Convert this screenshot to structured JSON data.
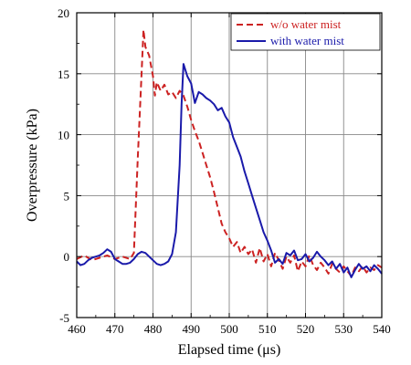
{
  "chart_data": {
    "type": "line",
    "title": "",
    "xlabel": "Elapsed time (μs)",
    "ylabel": "Overpressure (kPa)",
    "xlim": [
      460,
      540
    ],
    "ylim": [
      -5,
      20
    ],
    "xticks": [
      460,
      470,
      480,
      490,
      500,
      510,
      520,
      530,
      540
    ],
    "yticks": [
      -5,
      0,
      5,
      10,
      15,
      20
    ],
    "grid": true,
    "legend_position": "top-right",
    "series": [
      {
        "name": "w/o water mist",
        "color": "#cc2222",
        "style": "dashed",
        "points": [
          [
            460,
            -0.2
          ],
          [
            462,
            0.1
          ],
          [
            464,
            -0.3
          ],
          [
            466,
            -0.1
          ],
          [
            468,
            0.1
          ],
          [
            470,
            -0.2
          ],
          [
            472,
            0.0
          ],
          [
            474,
            -0.2
          ],
          [
            475,
            0.3
          ],
          [
            476,
            8.0
          ],
          [
            477,
            15.0
          ],
          [
            477.5,
            18.6
          ],
          [
            478,
            17.2
          ],
          [
            479,
            16.5
          ],
          [
            480,
            14.8
          ],
          [
            480.5,
            13.2
          ],
          [
            481,
            14.3
          ],
          [
            482,
            13.6
          ],
          [
            483,
            14.1
          ],
          [
            484,
            13.3
          ],
          [
            485,
            13.5
          ],
          [
            486,
            13.0
          ],
          [
            487,
            13.6
          ],
          [
            488,
            13.2
          ],
          [
            489,
            12.3
          ],
          [
            490,
            11.2
          ],
          [
            491,
            10.3
          ],
          [
            492,
            9.5
          ],
          [
            493,
            8.5
          ],
          [
            494,
            7.5
          ],
          [
            495,
            6.5
          ],
          [
            496,
            5.3
          ],
          [
            497,
            4.0
          ],
          [
            498,
            2.7
          ],
          [
            499,
            2.0
          ],
          [
            500,
            1.5
          ],
          [
            501,
            0.8
          ],
          [
            502,
            1.2
          ],
          [
            503,
            0.3
          ],
          [
            504,
            0.8
          ],
          [
            505,
            0.2
          ],
          [
            506,
            0.6
          ],
          [
            507,
            -0.5
          ],
          [
            508,
            0.7
          ],
          [
            509,
            -0.4
          ],
          [
            510,
            0.2
          ],
          [
            511,
            -0.8
          ],
          [
            512,
            0.3
          ],
          [
            513,
            -0.3
          ],
          [
            514,
            -1.0
          ],
          [
            515,
            0.0
          ],
          [
            516,
            -0.5
          ],
          [
            517,
            0.1
          ],
          [
            518,
            -1.2
          ],
          [
            519,
            -0.4
          ],
          [
            520,
            -0.8
          ],
          [
            521,
            0.1
          ],
          [
            522,
            -0.7
          ],
          [
            523,
            -1.1
          ],
          [
            524,
            -0.5
          ],
          [
            525,
            -0.9
          ],
          [
            526,
            -1.4
          ],
          [
            527,
            -0.6
          ],
          [
            528,
            -1.0
          ],
          [
            529,
            -1.3
          ],
          [
            530,
            -0.8
          ],
          [
            531,
            -1.2
          ],
          [
            532,
            -1.6
          ],
          [
            533,
            -0.9
          ],
          [
            534,
            -1.2
          ],
          [
            535,
            -0.8
          ],
          [
            536,
            -1.3
          ],
          [
            537,
            -0.9
          ],
          [
            538,
            -1.1
          ],
          [
            539,
            -0.7
          ],
          [
            540,
            -0.9
          ]
        ]
      },
      {
        "name": "with water mist",
        "color": "#1a1aaa",
        "style": "solid",
        "points": [
          [
            460,
            -0.4
          ],
          [
            461,
            -0.7
          ],
          [
            462,
            -0.6
          ],
          [
            463,
            -0.3
          ],
          [
            464,
            -0.1
          ],
          [
            465,
            0.0
          ],
          [
            466,
            0.1
          ],
          [
            467,
            0.3
          ],
          [
            468,
            0.6
          ],
          [
            469,
            0.4
          ],
          [
            470,
            -0.2
          ],
          [
            471,
            -0.4
          ],
          [
            472,
            -0.6
          ],
          [
            473,
            -0.6
          ],
          [
            474,
            -0.5
          ],
          [
            475,
            -0.2
          ],
          [
            476,
            0.2
          ],
          [
            477,
            0.4
          ],
          [
            478,
            0.3
          ],
          [
            479,
            0.0
          ],
          [
            480,
            -0.3
          ],
          [
            481,
            -0.6
          ],
          [
            482,
            -0.7
          ],
          [
            483,
            -0.6
          ],
          [
            484,
            -0.4
          ],
          [
            485,
            0.2
          ],
          [
            486,
            2.0
          ],
          [
            487,
            7.5
          ],
          [
            487.5,
            12.5
          ],
          [
            488,
            15.8
          ],
          [
            489,
            14.8
          ],
          [
            490,
            14.2
          ],
          [
            491,
            12.6
          ],
          [
            492,
            13.5
          ],
          [
            493,
            13.3
          ],
          [
            494,
            13.0
          ],
          [
            495,
            12.8
          ],
          [
            496,
            12.5
          ],
          [
            497,
            12.0
          ],
          [
            498,
            12.2
          ],
          [
            499,
            11.5
          ],
          [
            500,
            11.0
          ],
          [
            501,
            9.8
          ],
          [
            502,
            9.0
          ],
          [
            503,
            8.2
          ],
          [
            504,
            7.0
          ],
          [
            505,
            6.0
          ],
          [
            506,
            5.0
          ],
          [
            507,
            4.0
          ],
          [
            508,
            3.0
          ],
          [
            509,
            2.0
          ],
          [
            510,
            1.3
          ],
          [
            511,
            0.5
          ],
          [
            512,
            -0.5
          ],
          [
            513,
            -0.2
          ],
          [
            514,
            -0.6
          ],
          [
            515,
            0.3
          ],
          [
            516,
            0.1
          ],
          [
            517,
            0.5
          ],
          [
            518,
            -0.3
          ],
          [
            519,
            -0.2
          ],
          [
            520,
            0.2
          ],
          [
            521,
            -0.4
          ],
          [
            522,
            -0.1
          ],
          [
            523,
            0.4
          ],
          [
            524,
            0.0
          ],
          [
            525,
            -0.3
          ],
          [
            526,
            -0.7
          ],
          [
            527,
            -0.4
          ],
          [
            528,
            -1.0
          ],
          [
            529,
            -0.6
          ],
          [
            530,
            -1.3
          ],
          [
            531,
            -0.9
          ],
          [
            532,
            -1.7
          ],
          [
            533,
            -1.1
          ],
          [
            534,
            -0.6
          ],
          [
            535,
            -1.0
          ],
          [
            536,
            -0.8
          ],
          [
            537,
            -1.2
          ],
          [
            538,
            -0.7
          ],
          [
            539,
            -1.0
          ],
          [
            540,
            -1.4
          ]
        ]
      }
    ]
  }
}
